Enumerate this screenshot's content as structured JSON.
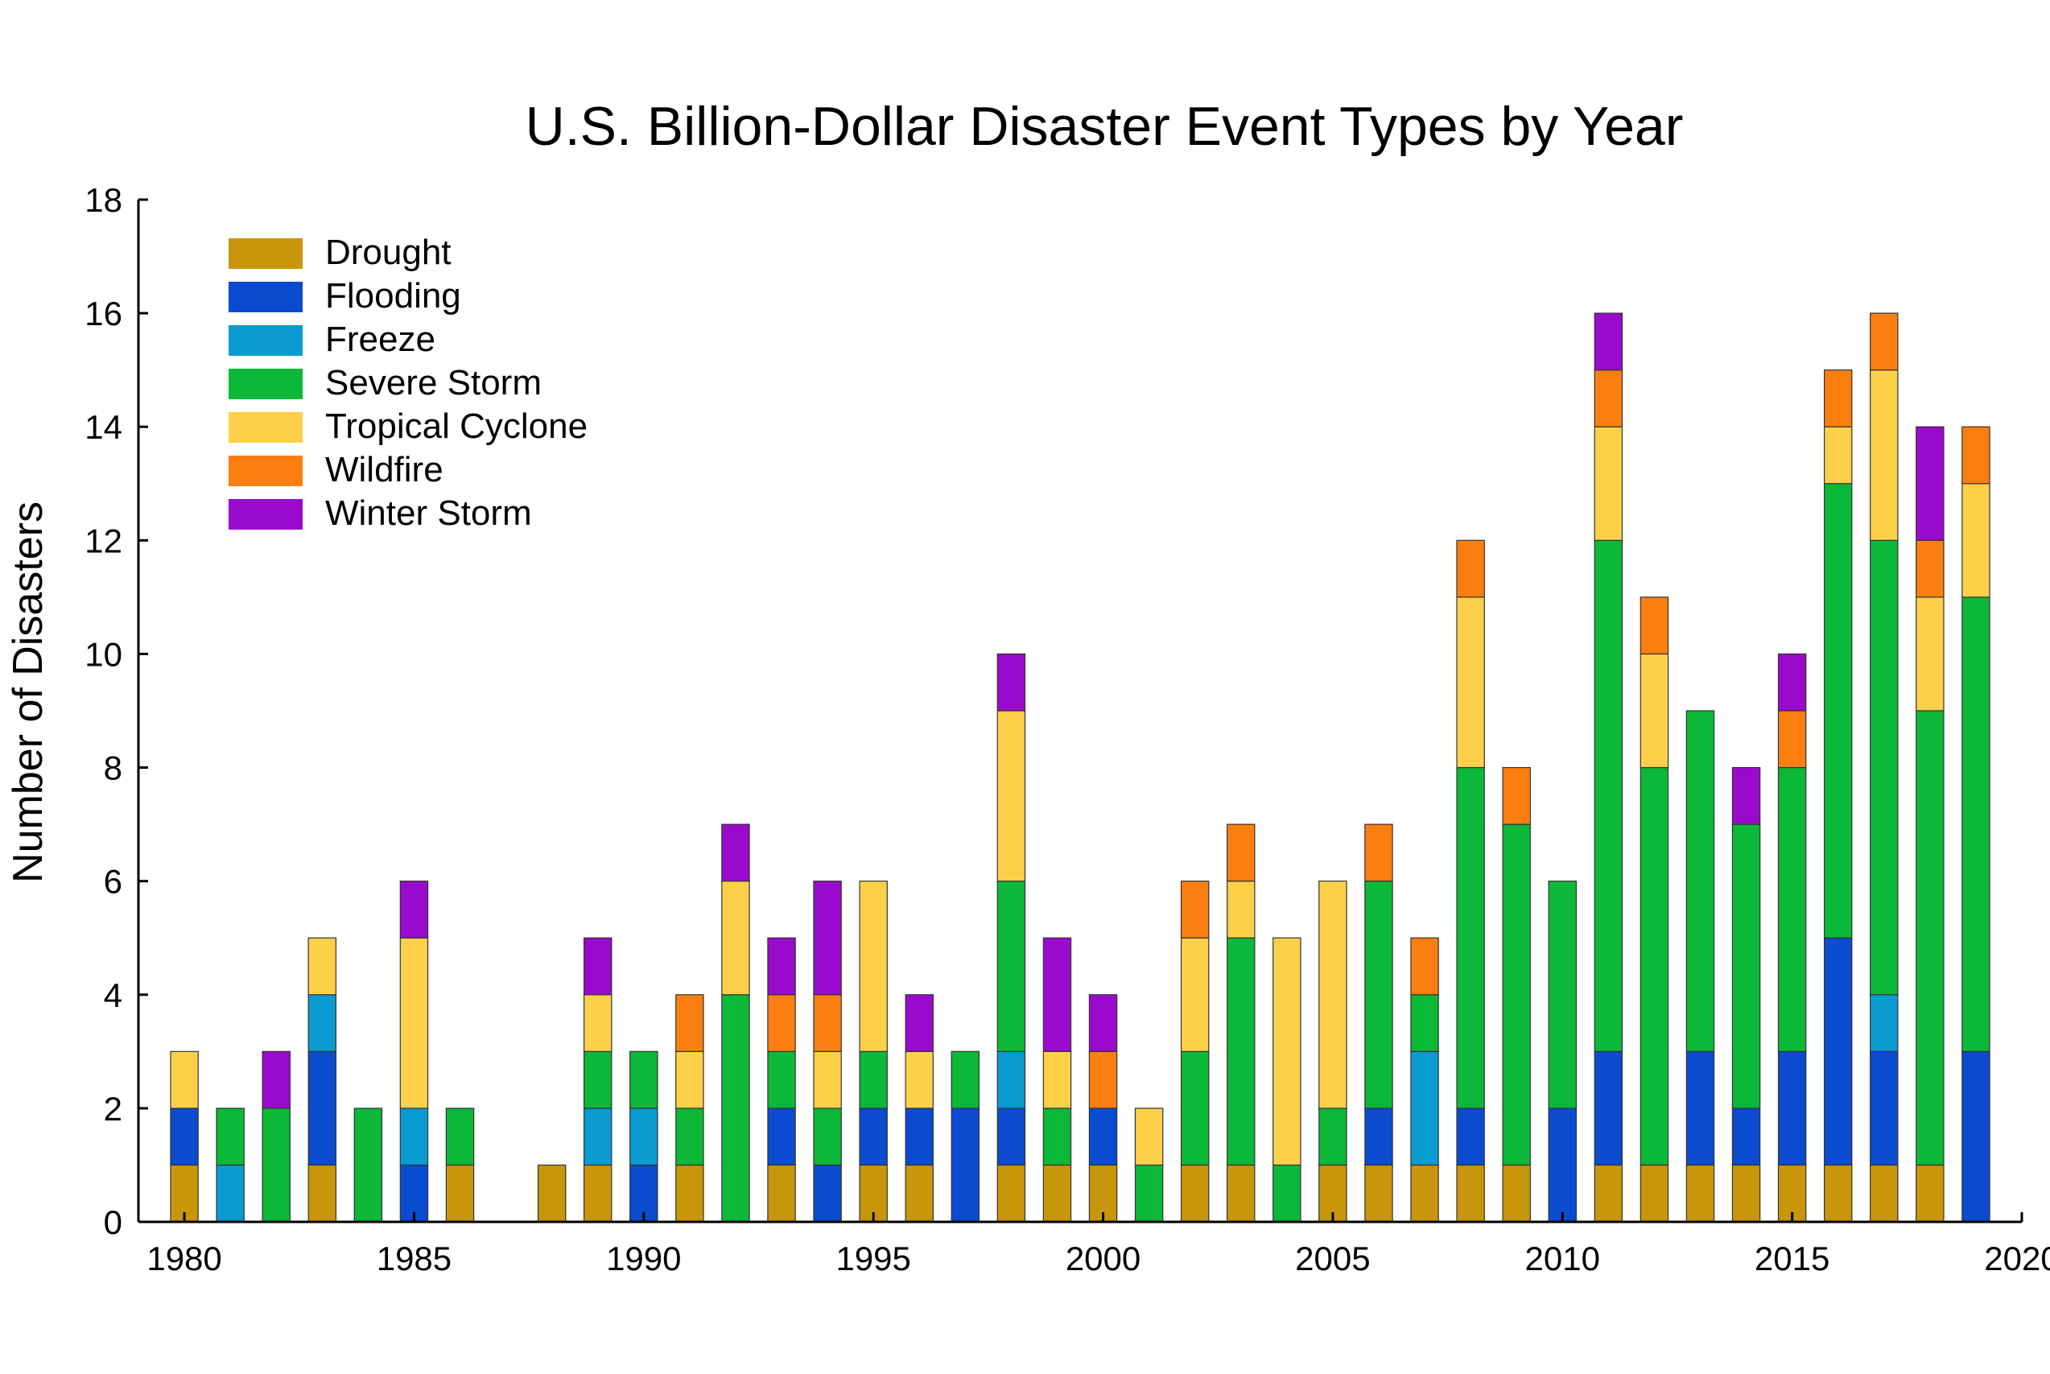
{
  "chart_data": {
    "type": "bar",
    "stacked": true,
    "title": "U.S. Billion-Dollar Disaster Event Types by Year",
    "xlabel": "",
    "ylabel": "Number of Disasters",
    "ylim": [
      0,
      18
    ],
    "xlim": [
      1979,
      2020
    ],
    "yticks": [
      "0",
      "2",
      "4",
      "6",
      "8",
      "10",
      "12",
      "14",
      "16",
      "18"
    ],
    "xticks": [
      "1980",
      "1985",
      "1990",
      "1995",
      "2000",
      "2005",
      "2010",
      "2015",
      "2020"
    ],
    "grid": false,
    "legend_position": "top-left",
    "categories": [
      1980,
      1981,
      1982,
      1983,
      1984,
      1985,
      1986,
      1987,
      1988,
      1989,
      1990,
      1991,
      1992,
      1993,
      1994,
      1995,
      1996,
      1997,
      1998,
      1999,
      2000,
      2001,
      2002,
      2003,
      2004,
      2005,
      2006,
      2007,
      2008,
      2009,
      2010,
      2011,
      2012,
      2013,
      2014,
      2015,
      2016,
      2017,
      2018,
      2019
    ],
    "series": [
      {
        "name": "Drought",
        "color": "#C8960A",
        "values": [
          1,
          0,
          0,
          1,
          0,
          0,
          1,
          0,
          1,
          1,
          0,
          1,
          0,
          1,
          0,
          1,
          1,
          0,
          1,
          1,
          1,
          0,
          1,
          1,
          0,
          1,
          1,
          1,
          1,
          1,
          0,
          1,
          1,
          1,
          1,
          1,
          1,
          1,
          1,
          0
        ]
      },
      {
        "name": "Flooding",
        "color": "#0B4BD0",
        "values": [
          1,
          0,
          0,
          2,
          0,
          1,
          0,
          0,
          0,
          0,
          1,
          0,
          0,
          1,
          1,
          1,
          1,
          2,
          1,
          0,
          1,
          0,
          0,
          0,
          0,
          0,
          1,
          0,
          1,
          0,
          2,
          2,
          0,
          2,
          1,
          2,
          4,
          2,
          0,
          3
        ]
      },
      {
        "name": "Freeze",
        "color": "#0A9BD0",
        "values": [
          0,
          1,
          0,
          1,
          0,
          1,
          0,
          0,
          0,
          1,
          1,
          0,
          0,
          0,
          0,
          0,
          0,
          0,
          1,
          0,
          0,
          0,
          0,
          0,
          0,
          0,
          0,
          2,
          0,
          0,
          0,
          0,
          0,
          0,
          0,
          0,
          0,
          1,
          0,
          0
        ]
      },
      {
        "name": "Severe Storm",
        "color": "#0CB838",
        "values": [
          0,
          1,
          2,
          0,
          2,
          0,
          1,
          0,
          0,
          1,
          1,
          1,
          4,
          1,
          1,
          1,
          0,
          1,
          3,
          1,
          0,
          1,
          2,
          4,
          1,
          1,
          4,
          1,
          6,
          6,
          4,
          9,
          7,
          6,
          5,
          5,
          8,
          8,
          8,
          8
        ]
      },
      {
        "name": "Tropical Cyclone",
        "color": "#FDD04A",
        "values": [
          1,
          0,
          0,
          1,
          0,
          3,
          0,
          0,
          0,
          1,
          0,
          1,
          2,
          0,
          1,
          3,
          1,
          0,
          3,
          1,
          0,
          1,
          2,
          1,
          4,
          4,
          0,
          0,
          3,
          0,
          0,
          2,
          2,
          0,
          0,
          0,
          1,
          3,
          2,
          2
        ]
      },
      {
        "name": "Wildfire",
        "color": "#FB7F10",
        "values": [
          0,
          0,
          0,
          0,
          0,
          0,
          0,
          0,
          0,
          0,
          0,
          1,
          0,
          1,
          1,
          0,
          0,
          0,
          0,
          0,
          1,
          0,
          1,
          1,
          0,
          0,
          1,
          1,
          1,
          1,
          0,
          1,
          1,
          0,
          0,
          1,
          1,
          1,
          1,
          1
        ]
      },
      {
        "name": "Winter Storm",
        "color": "#9A0ACC",
        "values": [
          0,
          0,
          1,
          0,
          0,
          1,
          0,
          0,
          0,
          1,
          0,
          0,
          1,
          1,
          2,
          0,
          1,
          0,
          1,
          2,
          1,
          0,
          0,
          0,
          0,
          0,
          0,
          0,
          0,
          0,
          0,
          1,
          0,
          0,
          1,
          1,
          0,
          0,
          2,
          0
        ]
      }
    ]
  }
}
